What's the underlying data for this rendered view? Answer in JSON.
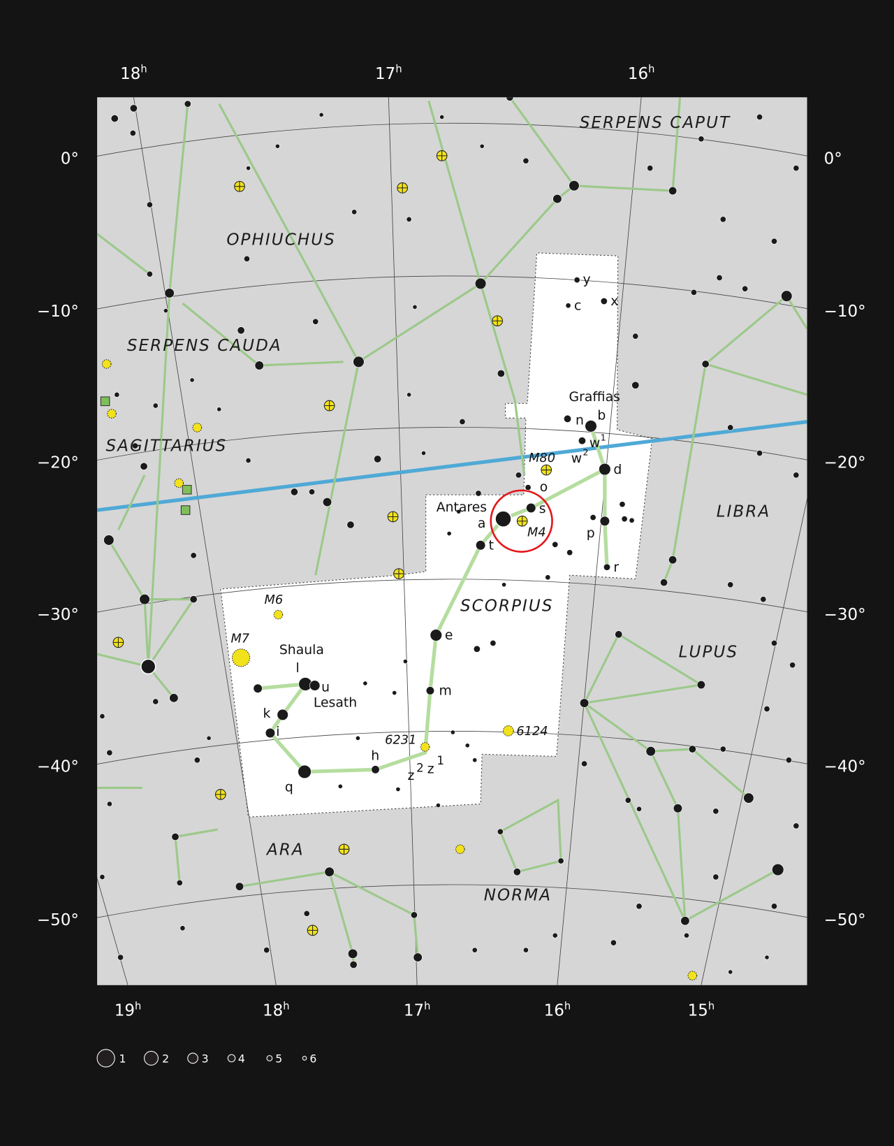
{
  "chart_data": {
    "type": "star-chart",
    "ra_top_labels": [
      {
        "h": "18",
        "s": "h"
      },
      {
        "h": "17",
        "s": "h"
      },
      {
        "h": "16",
        "s": "h"
      }
    ],
    "ra_bottom_labels": [
      {
        "h": "19",
        "s": "h"
      },
      {
        "h": "18",
        "s": "h"
      },
      {
        "h": "17",
        "s": "h"
      },
      {
        "h": "16",
        "s": "h"
      },
      {
        "h": "15",
        "s": "h"
      }
    ],
    "dec_labels": [
      "0°",
      "−10°",
      "−20°",
      "−30°",
      "−40°",
      "−50°"
    ],
    "constellations": [
      "SERPENS CAPUT",
      "OPHIUCHUS",
      "SERPENS CAUDA",
      "SAGITTARIUS",
      "LIBRA",
      "SCORPIUS",
      "LUPUS",
      "ARA",
      "NORMA"
    ],
    "star_names": [
      "Graffias",
      "Antares",
      "Shaula",
      "Lesath"
    ],
    "greek_letters": [
      "y",
      "c",
      "x",
      "n",
      "b",
      "w",
      "1",
      "w",
      "2",
      "d",
      "o",
      "s",
      "a",
      "p",
      "t",
      "r",
      "e",
      "m",
      "l",
      "u",
      "k",
      "i",
      "q",
      "h",
      "z",
      "2",
      "z",
      "1"
    ],
    "deep_sky_objects": [
      "M80",
      "M4",
      "M6",
      "M7",
      "6231",
      "6124"
    ],
    "highlight": "Antares / M4 (red circle)",
    "magnitude_legend": [
      "1",
      "2",
      "3",
      "4",
      "5",
      "6"
    ],
    "colors": {
      "background": "#141414",
      "sky": "#d6d6d6",
      "scorpius": "#ffffff",
      "lines": "#9cc98a",
      "ecliptic": "#4fa9d6",
      "highlight": "#e3161b",
      "cluster": "#f2e21b"
    }
  }
}
